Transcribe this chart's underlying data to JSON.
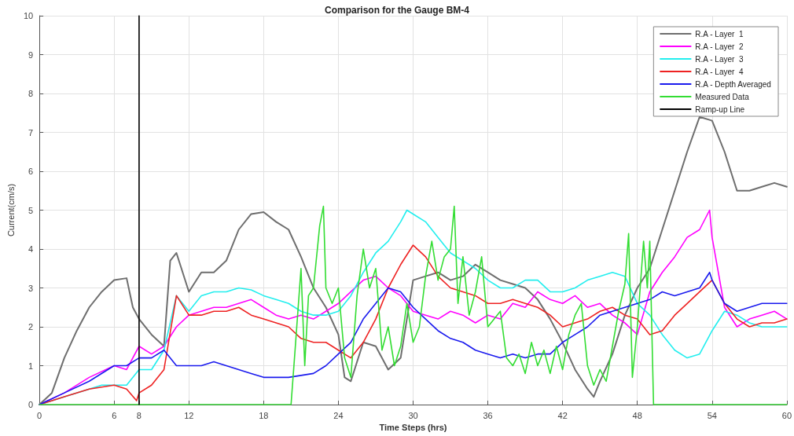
{
  "chart_data": {
    "type": "line",
    "title": "Comparison for the Gauge BM-4",
    "xlabel": "Time Steps (hrs)",
    "ylabel": "Current(cm/s)",
    "xlim": [
      0,
      60
    ],
    "xticks": [
      0,
      6,
      8,
      12,
      18,
      24,
      30,
      36,
      42,
      48,
      54,
      60
    ],
    "ylim": [
      0,
      10
    ],
    "yticks": [
      0,
      1,
      2,
      3,
      4,
      5,
      6,
      7,
      8,
      9,
      10
    ],
    "grid": true,
    "legend": "top right",
    "marker": "none",
    "line_style": "solid",
    "series": [
      {
        "name": "R.A - Layer  1",
        "color": "#6e6e6e",
        "x": [
          0,
          1,
          2,
          3,
          4,
          5,
          6,
          7,
          7.5,
          8,
          9,
          10,
          10.5,
          11,
          12,
          13,
          14,
          15,
          16,
          17,
          18,
          19,
          20,
          21,
          22,
          23,
          24,
          24.5,
          25,
          26,
          27,
          28,
          29,
          30,
          31,
          32,
          33,
          34,
          35,
          36,
          37,
          38,
          39,
          40,
          41,
          42,
          43,
          44,
          44.5,
          45,
          46,
          47,
          48,
          49,
          50,
          51,
          52,
          53,
          54,
          55,
          56,
          57,
          58,
          59,
          60
        ],
        "values": [
          0,
          0.3,
          1.2,
          1.9,
          2.5,
          2.9,
          3.2,
          3.25,
          2.5,
          2.2,
          1.8,
          1.5,
          3.7,
          3.9,
          2.9,
          3.4,
          3.4,
          3.7,
          4.5,
          4.9,
          4.95,
          4.7,
          4.5,
          3.8,
          3.0,
          2.5,
          1.8,
          0.7,
          0.6,
          1.6,
          1.5,
          0.9,
          1.2,
          3.2,
          3.3,
          3.4,
          3.2,
          3.3,
          3.6,
          3.4,
          3.2,
          3.1,
          3.0,
          2.7,
          2.2,
          1.6,
          0.9,
          0.4,
          0.2,
          0.6,
          1.3,
          2.3,
          3.0,
          3.5,
          4.5,
          5.5,
          6.5,
          7.4,
          7.3,
          6.5,
          5.5,
          5.5,
          5.6,
          5.7,
          5.6
        ]
      },
      {
        "name": "R.A - Layer  2",
        "color": "#ff00ff",
        "x": [
          0,
          2,
          4,
          6,
          7,
          8,
          9,
          10,
          11,
          12,
          13,
          14,
          15,
          16,
          17,
          18,
          19,
          20,
          21,
          22,
          23,
          24,
          25,
          26,
          27,
          28,
          29,
          30,
          31,
          32,
          33,
          34,
          35,
          36,
          37,
          38,
          39,
          40,
          41,
          42,
          43,
          44,
          45,
          46,
          47,
          48,
          49,
          50,
          51,
          52,
          53,
          53.8,
          54,
          55,
          56,
          57,
          58,
          59,
          60
        ],
        "values": [
          0,
          0.3,
          0.7,
          1.0,
          0.9,
          1.5,
          1.3,
          1.5,
          2.0,
          2.3,
          2.4,
          2.5,
          2.5,
          2.6,
          2.7,
          2.5,
          2.3,
          2.2,
          2.3,
          2.2,
          2.4,
          2.6,
          2.9,
          3.2,
          3.3,
          3.0,
          2.8,
          2.4,
          2.3,
          2.2,
          2.4,
          2.3,
          2.1,
          2.3,
          2.2,
          2.6,
          2.5,
          2.9,
          2.7,
          2.6,
          2.8,
          2.5,
          2.6,
          2.3,
          2.1,
          1.8,
          2.9,
          3.4,
          3.8,
          4.3,
          4.5,
          5.0,
          4.3,
          2.5,
          2.0,
          2.2,
          2.3,
          2.4,
          2.2
        ]
      },
      {
        "name": "R.A - Layer  3",
        "color": "#22eeee",
        "x": [
          0,
          4,
          5,
          6,
          7,
          8,
          9,
          10,
          11,
          12,
          13,
          14,
          15,
          16,
          17,
          18,
          19,
          20,
          21,
          22,
          23,
          24,
          25,
          26,
          27,
          28,
          29,
          29.5,
          30,
          31,
          32,
          33,
          34,
          35,
          36,
          37,
          38,
          39,
          40,
          41,
          42,
          43,
          44,
          45,
          46,
          47,
          48,
          49,
          50,
          51,
          52,
          53,
          54,
          55,
          56,
          57,
          58,
          59,
          60
        ],
        "values": [
          0,
          0.4,
          0.5,
          0.5,
          0.5,
          0.9,
          0.9,
          1.4,
          2.8,
          2.4,
          2.8,
          2.9,
          2.9,
          3.0,
          2.95,
          2.8,
          2.7,
          2.6,
          2.4,
          2.3,
          2.3,
          2.4,
          2.8,
          3.4,
          3.9,
          4.2,
          4.7,
          5.0,
          4.9,
          4.7,
          4.3,
          3.9,
          3.7,
          3.5,
          3.2,
          3.0,
          3.0,
          3.2,
          3.2,
          2.9,
          2.9,
          3.0,
          3.2,
          3.3,
          3.4,
          3.3,
          2.6,
          2.3,
          1.8,
          1.4,
          1.2,
          1.3,
          1.9,
          2.4,
          2.3,
          2.1,
          2.0,
          2.0,
          2.0
        ]
      },
      {
        "name": "R.A - Layer  4",
        "color": "#ee2222",
        "x": [
          0,
          2,
          4,
          6,
          7,
          7.8,
          8,
          9,
          10,
          11,
          12,
          13,
          14,
          15,
          16,
          17,
          18,
          19,
          20,
          21,
          22,
          23,
          24,
          25,
          26,
          27,
          28,
          29,
          30,
          31,
          32,
          33,
          34,
          35,
          36,
          37,
          38,
          39,
          40,
          41,
          42,
          43,
          44,
          45,
          46,
          47,
          48,
          49,
          50,
          51,
          52,
          53,
          54,
          55,
          56,
          57,
          58,
          59,
          60
        ],
        "values": [
          0,
          0.2,
          0.4,
          0.5,
          0.4,
          0.1,
          0.3,
          0.5,
          0.9,
          2.8,
          2.3,
          2.3,
          2.4,
          2.4,
          2.5,
          2.3,
          2.2,
          2.1,
          2.0,
          1.7,
          1.6,
          1.6,
          1.4,
          1.2,
          1.6,
          2.2,
          3.0,
          3.6,
          4.1,
          3.8,
          3.3,
          3.0,
          2.9,
          2.8,
          2.6,
          2.6,
          2.7,
          2.6,
          2.5,
          2.3,
          2.0,
          2.1,
          2.2,
          2.4,
          2.5,
          2.3,
          2.2,
          1.8,
          1.9,
          2.3,
          2.6,
          2.9,
          3.2,
          2.6,
          2.2,
          2.0,
          2.1,
          2.1,
          2.2
        ]
      },
      {
        "name": "R.A - Depth Averaged",
        "color": "#1a1aee",
        "x": [
          0,
          2,
          4,
          6,
          7,
          8,
          9,
          10,
          11,
          12,
          13,
          14,
          15,
          16,
          17,
          18,
          19,
          20,
          21,
          22,
          23,
          24,
          25,
          26,
          27,
          28,
          29,
          30,
          31,
          32,
          33,
          34,
          35,
          36,
          37,
          38,
          39,
          40,
          41,
          42,
          43,
          44,
          45,
          46,
          47,
          48,
          49,
          50,
          51,
          52,
          53,
          53.8,
          54,
          55,
          56,
          57,
          58,
          59,
          60
        ],
        "values": [
          0,
          0.3,
          0.6,
          1.0,
          1.0,
          1.2,
          1.2,
          1.4,
          1.0,
          1.0,
          1.0,
          1.1,
          1.0,
          0.9,
          0.8,
          0.7,
          0.7,
          0.7,
          0.75,
          0.8,
          1.0,
          1.3,
          1.6,
          2.2,
          2.6,
          3.0,
          2.9,
          2.5,
          2.2,
          1.9,
          1.7,
          1.6,
          1.4,
          1.3,
          1.2,
          1.3,
          1.2,
          1.3,
          1.3,
          1.6,
          1.8,
          2.0,
          2.3,
          2.4,
          2.5,
          2.6,
          2.7,
          2.9,
          2.8,
          2.9,
          3.0,
          3.4,
          3.2,
          2.6,
          2.4,
          2.5,
          2.6,
          2.6,
          2.6
        ]
      },
      {
        "name": "Measured Data",
        "color": "#33dd33",
        "x": [
          0,
          20.2,
          20.5,
          21,
          21.3,
          21.6,
          22,
          22.5,
          22.8,
          23,
          23.5,
          24,
          24.5,
          25,
          25.5,
          26,
          26.5,
          27,
          27.5,
          28,
          28.5,
          29,
          29.5,
          30,
          30.5,
          31,
          31.5,
          32,
          32.5,
          33,
          33.3,
          33.6,
          34,
          34.5,
          35,
          35.5,
          36,
          37,
          37.5,
          38,
          38.5,
          39,
          39.5,
          40,
          40.5,
          41,
          41.5,
          42,
          42.5,
          43,
          43.5,
          44,
          44.5,
          45,
          45.5,
          46,
          46.5,
          47,
          47.3,
          47.6,
          48,
          48.5,
          48.8,
          49,
          49.3,
          60
        ],
        "values": [
          0,
          0,
          1.3,
          3.5,
          1.0,
          2.8,
          3.0,
          4.6,
          5.1,
          3.0,
          2.6,
          3.0,
          1.2,
          0.7,
          2.8,
          4.0,
          3.0,
          3.5,
          1.4,
          2.0,
          1.0,
          1.5,
          2.6,
          1.6,
          2.0,
          3.3,
          4.2,
          3.2,
          3.8,
          4.0,
          5.1,
          2.6,
          3.8,
          2.3,
          2.9,
          3.8,
          2.0,
          2.4,
          1.2,
          1.0,
          1.3,
          0.8,
          1.6,
          1.0,
          1.4,
          0.8,
          1.5,
          0.9,
          1.8,
          2.3,
          2.6,
          1.0,
          0.5,
          0.9,
          0.6,
          1.5,
          2.4,
          3.1,
          4.4,
          0.7,
          2.0,
          4.2,
          3.0,
          4.2,
          0,
          0
        ]
      },
      {
        "name": "Ramp-up Line",
        "color": "#000000",
        "x": [
          8,
          8
        ],
        "values": [
          0,
          10
        ]
      }
    ]
  }
}
